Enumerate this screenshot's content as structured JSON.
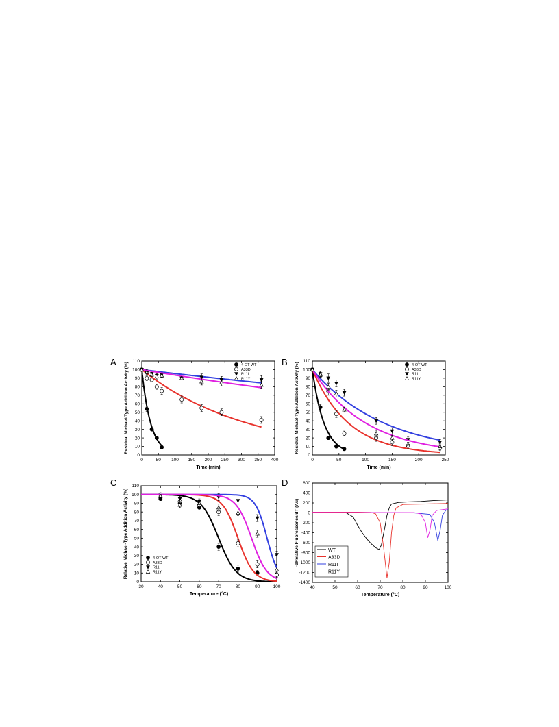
{
  "chart_data": [
    {
      "panel_label": "A",
      "type": "scatter",
      "xlabel": "Time (min)",
      "ylabel": "Residual Michael-Type Addition Activity (%)",
      "xlim": [
        0,
        400
      ],
      "ylim": [
        0,
        110
      ],
      "xticks": [
        0,
        50,
        100,
        150,
        200,
        250,
        300,
        350,
        400
      ],
      "yticks": [
        0,
        10,
        20,
        30,
        40,
        50,
        60,
        70,
        80,
        90,
        100,
        110
      ],
      "legend_position": "top-right",
      "series": [
        {
          "name": "4-OT WT",
          "marker": "filled-circle",
          "color": "#000000",
          "fit_color": "#000000",
          "fit_k": 0.037,
          "points": [
            [
              0,
              100,
              2
            ],
            [
              15,
              54,
              3
            ],
            [
              30,
              30,
              2
            ],
            [
              45,
              20,
              2
            ],
            [
              60,
              9,
              2
            ]
          ]
        },
        {
          "name": "A33D",
          "marker": "open-circle",
          "color": "#000000",
          "fit_color": "#e8322c",
          "fit_k": 0.0031,
          "points": [
            [
              0,
              100,
              2
            ],
            [
              15,
              90,
              3
            ],
            [
              30,
              88,
              2
            ],
            [
              45,
              80,
              3
            ],
            [
              60,
              75,
              4
            ],
            [
              120,
              65,
              4
            ],
            [
              180,
              55,
              4
            ],
            [
              240,
              50,
              4
            ],
            [
              360,
              41,
              4
            ]
          ]
        },
        {
          "name": "R11I",
          "marker": "filled-triangle-down",
          "color": "#000000",
          "fit_color": "#3340e0",
          "fit_k": 0.00047,
          "points": [
            [
              0,
              100,
              2
            ],
            [
              15,
              96,
              3
            ],
            [
              30,
              95,
              2
            ],
            [
              45,
              93,
              2
            ],
            [
              60,
              94,
              2
            ],
            [
              120,
              90,
              2
            ],
            [
              180,
              91,
              4
            ],
            [
              240,
              88,
              4
            ],
            [
              360,
              88,
              5
            ]
          ]
        },
        {
          "name": "R11Y",
          "marker": "open-triangle-up",
          "color": "#000000",
          "fit_color": "#e020e0",
          "fit_k": 0.00066,
          "points": [
            [
              0,
              100,
              2
            ],
            [
              15,
              97,
              3
            ],
            [
              30,
              94,
              2
            ],
            [
              45,
              92,
              3
            ],
            [
              60,
              93,
              2
            ],
            [
              120,
              90,
              2
            ],
            [
              180,
              86,
              4
            ],
            [
              240,
              85,
              4
            ],
            [
              360,
              82,
              4
            ]
          ]
        }
      ]
    },
    {
      "panel_label": "B",
      "type": "scatter",
      "xlabel": "Time (min)",
      "ylabel": "Residual Michael-Type Addition Activity (%)",
      "xlim": [
        0,
        250
      ],
      "ylim": [
        0,
        110
      ],
      "xticks": [
        0,
        50,
        100,
        150,
        200,
        250
      ],
      "yticks": [
        0,
        10,
        20,
        30,
        40,
        50,
        60,
        70,
        80,
        90,
        100,
        110
      ],
      "legend_position": "top-right",
      "series": [
        {
          "name": "4-OT WT",
          "marker": "filled-circle",
          "color": "#000000",
          "fit_color": "#000000",
          "fit_k": 0.045,
          "points": [
            [
              0,
              100,
              2
            ],
            [
              15,
              56,
              3
            ],
            [
              30,
              20,
              2
            ],
            [
              45,
              10,
              2
            ],
            [
              60,
              7,
              2
            ]
          ]
        },
        {
          "name": "A33D",
          "marker": "open-circle",
          "color": "#000000",
          "fit_color": "#e8322c",
          "fit_k": 0.0145,
          "points": [
            [
              0,
              100,
              2
            ],
            [
              15,
              93,
              3
            ],
            [
              30,
              75,
              5
            ],
            [
              45,
              48,
              4
            ],
            [
              60,
              25,
              3
            ],
            [
              120,
              20,
              4
            ],
            [
              150,
              15,
              4
            ],
            [
              180,
              11,
              4
            ],
            [
              240,
              8,
              3
            ]
          ]
        },
        {
          "name": "R11I",
          "marker": "filled-triangle-down",
          "color": "#000000",
          "fit_color": "#3340e0",
          "fit_k": 0.0073,
          "points": [
            [
              0,
              100,
              2
            ],
            [
              15,
              95,
              3
            ],
            [
              30,
              90,
              5
            ],
            [
              45,
              84,
              4
            ],
            [
              60,
              73,
              4
            ],
            [
              120,
              40,
              4
            ],
            [
              150,
              28,
              4
            ],
            [
              180,
              18,
              3
            ],
            [
              240,
              15,
              3
            ]
          ]
        },
        {
          "name": "R11Y",
          "marker": "open-triangle-up",
          "color": "#000000",
          "fit_color": "#e020e0",
          "fit_k": 0.0098,
          "points": [
            [
              0,
              100,
              2
            ],
            [
              15,
              94,
              3
            ],
            [
              30,
              80,
              4
            ],
            [
              45,
              72,
              4
            ],
            [
              60,
              53,
              3
            ],
            [
              120,
              25,
              4
            ],
            [
              150,
              20,
              3
            ],
            [
              180,
              11,
              3
            ],
            [
              240,
              10,
              3
            ]
          ]
        }
      ]
    },
    {
      "panel_label": "C",
      "type": "scatter",
      "xlabel": "Temperature (°C)",
      "ylabel": "Relative Michael-Type Addition Activity (%)",
      "xlim": [
        30,
        100
      ],
      "ylim": [
        0,
        110
      ],
      "xticks": [
        30,
        40,
        50,
        60,
        70,
        80,
        90,
        100
      ],
      "yticks": [
        0,
        10,
        20,
        30,
        40,
        50,
        60,
        70,
        80,
        90,
        100,
        110
      ],
      "legend_position": "bottom-left",
      "series": [
        {
          "name": "4-OT WT",
          "marker": "filled-circle",
          "color": "#000000",
          "fit_color": "#000000",
          "fit_tm": 70,
          "fit_w": 4.5,
          "points": [
            [
              40,
              95,
              2
            ],
            [
              50,
              90,
              3
            ],
            [
              60,
              85,
              3
            ],
            [
              70,
              40,
              4
            ],
            [
              80,
              15,
              4
            ],
            [
              90,
              10,
              3
            ],
            [
              100,
              8,
              3
            ]
          ]
        },
        {
          "name": "A33D",
          "marker": "open-circle",
          "color": "#000000",
          "fit_color": "#e8322c",
          "fit_tm": 80,
          "fit_w": 4.0,
          "points": [
            [
              40,
              100,
              2
            ],
            [
              50,
              92,
              4
            ],
            [
              60,
              88,
              3
            ],
            [
              70,
              80,
              4
            ],
            [
              80,
              44,
              4
            ],
            [
              90,
              20,
              4
            ],
            [
              100,
              8,
              3
            ]
          ]
        },
        {
          "name": "R11I",
          "marker": "filled-triangle-down",
          "color": "#000000",
          "fit_color": "#3340e0",
          "fit_tm": 95,
          "fit_w": 3.0,
          "points": [
            [
              40,
              96,
              2
            ],
            [
              50,
              95,
              3
            ],
            [
              60,
              92,
              3
            ],
            [
              70,
              97,
              4
            ],
            [
              80,
              93,
              4
            ],
            [
              90,
              73,
              4
            ],
            [
              100,
              31,
              4
            ]
          ]
        },
        {
          "name": "R11Y",
          "marker": "open-triangle-up",
          "color": "#000000",
          "fit_color": "#e020e0",
          "fit_tm": 87,
          "fit_w": 4.0,
          "points": [
            [
              40,
              98,
              2
            ],
            [
              50,
              88,
              3
            ],
            [
              60,
              90,
              3
            ],
            [
              70,
              85,
              4
            ],
            [
              80,
              79,
              3
            ],
            [
              90,
              55,
              4
            ],
            [
              100,
              14,
              3
            ]
          ]
        }
      ]
    },
    {
      "panel_label": "D",
      "type": "line",
      "xlabel": "Temperature (°C)",
      "ylabel": "-dRelative Fluorescence/dT (Au)",
      "xlim": [
        40,
        100
      ],
      "ylim": [
        -1400,
        600
      ],
      "xticks": [
        40,
        50,
        60,
        70,
        80,
        90,
        100
      ],
      "yticks": [
        -1400,
        -1200,
        -1000,
        -800,
        -600,
        -400,
        -200,
        0,
        200,
        400,
        600
      ],
      "legend_position": "bottom-left",
      "series": [
        {
          "name": "WT",
          "color": "#000000",
          "points": [
            [
              40,
              10
            ],
            [
              50,
              10
            ],
            [
              55,
              0
            ],
            [
              58,
              -80
            ],
            [
              60,
              -250
            ],
            [
              62,
              -400
            ],
            [
              64,
              -520
            ],
            [
              66,
              -620
            ],
            [
              68,
              -700
            ],
            [
              69.5,
              -740
            ],
            [
              70.5,
              -650
            ],
            [
              72,
              -300
            ],
            [
              73,
              -50
            ],
            [
              74,
              100
            ],
            [
              75,
              180
            ],
            [
              78,
              210
            ],
            [
              82,
              220
            ],
            [
              88,
              230
            ],
            [
              94,
              250
            ],
            [
              100,
              260
            ]
          ]
        },
        {
          "name": "A33D",
          "color": "#e8322c",
          "points": [
            [
              40,
              15
            ],
            [
              60,
              15
            ],
            [
              66,
              10
            ],
            [
              68,
              -20
            ],
            [
              70,
              -200
            ],
            [
              71.5,
              -700
            ],
            [
              73,
              -1310
            ],
            [
              74,
              -1000
            ],
            [
              75,
              -400
            ],
            [
              76,
              -50
            ],
            [
              77,
              100
            ],
            [
              80,
              170
            ],
            [
              90,
              180
            ],
            [
              100,
              190
            ]
          ]
        },
        {
          "name": "R11I",
          "color": "#3340e0",
          "points": [
            [
              40,
              5
            ],
            [
              85,
              0
            ],
            [
              92,
              -30
            ],
            [
              94,
              -200
            ],
            [
              95.5,
              -560
            ],
            [
              96.5,
              -350
            ],
            [
              97.5,
              -50
            ],
            [
              99,
              50
            ],
            [
              100,
              70
            ]
          ]
        },
        {
          "name": "R11Y",
          "color": "#e020e0",
          "points": [
            [
              40,
              10
            ],
            [
              85,
              5
            ],
            [
              88,
              -20
            ],
            [
              90,
              -200
            ],
            [
              91,
              -500
            ],
            [
              92,
              -350
            ],
            [
              93,
              -50
            ],
            [
              95,
              50
            ],
            [
              100,
              80
            ]
          ]
        }
      ]
    }
  ]
}
